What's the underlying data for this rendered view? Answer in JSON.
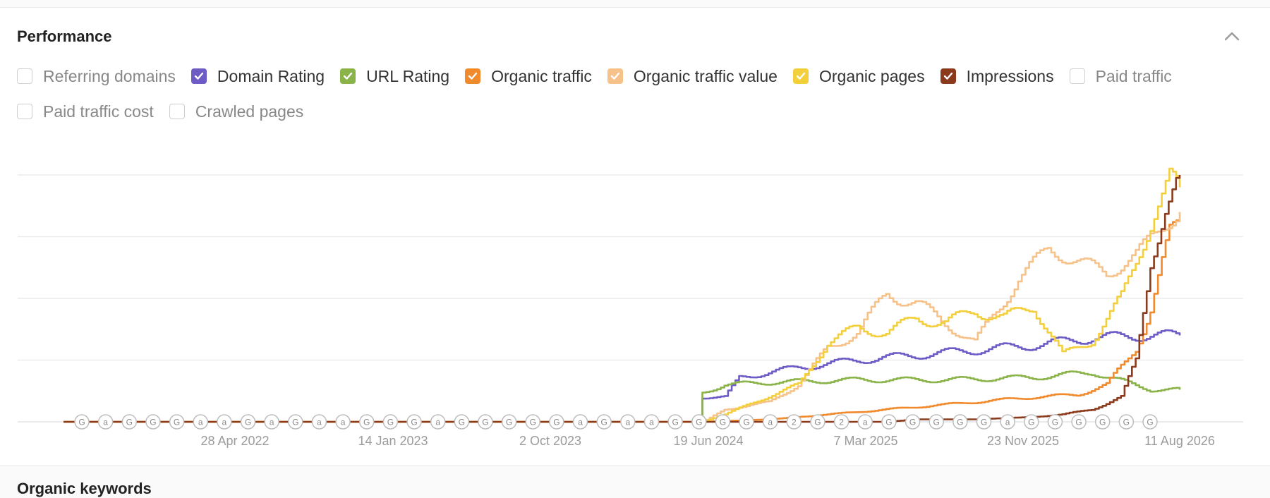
{
  "section": {
    "title": "Performance",
    "collapse_icon": "chevron-up-icon"
  },
  "legend": [
    {
      "label": "Referring domains",
      "checked": false,
      "color": "#cfcfcf"
    },
    {
      "label": "Domain Rating",
      "checked": true,
      "color": "#6e5bc5"
    },
    {
      "label": "URL Rating",
      "checked": true,
      "color": "#8ab34a"
    },
    {
      "label": "Organic traffic",
      "checked": true,
      "color": "#f08a2c"
    },
    {
      "label": "Organic traffic value",
      "checked": true,
      "color": "#f6c28a"
    },
    {
      "label": "Organic pages",
      "checked": true,
      "color": "#f4cf3c"
    },
    {
      "label": "Impressions",
      "checked": true,
      "color": "#8b3a1c"
    },
    {
      "label": "Paid traffic",
      "checked": false,
      "color": "#cfcfcf"
    },
    {
      "label": "Paid traffic cost",
      "checked": false,
      "color": "#cfcfcf"
    },
    {
      "label": "Crawled pages",
      "checked": false,
      "color": "#cfcfcf"
    }
  ],
  "chart_data": {
    "type": "line",
    "x_tick_labels": [
      "28 Apr 2022",
      "14 Jan 2023",
      "2 Oct 2023",
      "19 Jun 2024",
      "7 Mar 2025",
      "23 Nov 2025",
      "11 Aug 2026"
    ],
    "y_axis_labels_shown": false,
    "grid": "horizontal",
    "ylim": [
      0,
      100
    ],
    "x_domain_months": [
      0,
      76
    ],
    "series": [
      {
        "name": "Domain Rating",
        "color": "#6e5bc5",
        "points": [
          [
            0,
            0
          ],
          [
            43.5,
            0
          ],
          [
            43.5,
            10
          ],
          [
            45,
            10
          ],
          [
            46,
            18
          ],
          [
            48,
            20
          ],
          [
            50,
            22
          ],
          [
            54,
            25
          ],
          [
            58,
            27
          ],
          [
            62,
            29
          ],
          [
            66,
            31
          ],
          [
            70,
            34
          ],
          [
            74,
            35
          ],
          [
            76,
            35
          ]
        ]
      },
      {
        "name": "URL Rating",
        "color": "#8ab34a",
        "points": [
          [
            0,
            0
          ],
          [
            43.5,
            0
          ],
          [
            43.5,
            12
          ],
          [
            45,
            15
          ],
          [
            48,
            16
          ],
          [
            54,
            17
          ],
          [
            60,
            17
          ],
          [
            66,
            18
          ],
          [
            70,
            20
          ],
          [
            74,
            13
          ],
          [
            76,
            13
          ]
        ]
      },
      {
        "name": "Organic traffic",
        "color": "#f08a2c",
        "points": [
          [
            0,
            0
          ],
          [
            43.5,
            0
          ],
          [
            48,
            1
          ],
          [
            54,
            4
          ],
          [
            58,
            6
          ],
          [
            62,
            8
          ],
          [
            66,
            10
          ],
          [
            69,
            11
          ],
          [
            71,
            15
          ],
          [
            73,
            30
          ],
          [
            74,
            45
          ],
          [
            75.3,
            77
          ],
          [
            76,
            82
          ]
        ]
      },
      {
        "name": "Organic traffic value",
        "color": "#f6c28a",
        "points": [
          [
            0,
            0
          ],
          [
            43.5,
            0
          ],
          [
            45,
            5
          ],
          [
            48,
            8
          ],
          [
            50,
            15
          ],
          [
            52,
            30
          ],
          [
            54,
            36
          ],
          [
            56,
            52
          ],
          [
            58,
            48
          ],
          [
            60,
            40
          ],
          [
            62,
            32
          ],
          [
            65,
            58
          ],
          [
            67,
            70
          ],
          [
            69,
            65
          ],
          [
            71,
            60
          ],
          [
            73,
            68
          ],
          [
            75,
            80
          ],
          [
            76,
            85
          ]
        ]
      },
      {
        "name": "Organic pages",
        "color": "#f4cf3c",
        "points": [
          [
            0,
            0
          ],
          [
            43.5,
            0
          ],
          [
            45,
            3
          ],
          [
            47,
            8
          ],
          [
            50,
            15
          ],
          [
            52,
            32
          ],
          [
            54,
            38
          ],
          [
            56,
            36
          ],
          [
            58,
            42
          ],
          [
            60,
            40
          ],
          [
            62,
            45
          ],
          [
            64,
            42
          ],
          [
            66,
            47
          ],
          [
            68,
            27
          ],
          [
            70,
            33
          ],
          [
            72,
            50
          ],
          [
            74,
            80
          ],
          [
            75.3,
            100
          ],
          [
            76,
            95
          ]
        ]
      },
      {
        "name": "Impressions",
        "color": "#8b3a1c",
        "points": [
          [
            0,
            0
          ],
          [
            52,
            0
          ],
          [
            56,
            0
          ],
          [
            58,
            1
          ],
          [
            62,
            1
          ],
          [
            66,
            2
          ],
          [
            68,
            3
          ],
          [
            70,
            5
          ],
          [
            72,
            10
          ],
          [
            73,
            25
          ],
          [
            74,
            65
          ],
          [
            75,
            85
          ],
          [
            76,
            100
          ]
        ]
      }
    ],
    "event_markers": [
      "G",
      "a",
      "G",
      "G",
      "G",
      "a",
      "a",
      "G",
      "a",
      "G",
      "a",
      "a",
      "G",
      "G",
      "G",
      "a",
      "G",
      "G",
      "G",
      "G",
      "G",
      "a",
      "G",
      "a",
      "a",
      "G",
      "G",
      "G",
      "G",
      "a",
      "2",
      "G",
      "2",
      "a",
      "G",
      "G",
      "G",
      "G",
      "G",
      "a",
      "G",
      "G",
      "G",
      "G",
      "G",
      "G"
    ]
  },
  "next_section_title": "Organic keywords"
}
